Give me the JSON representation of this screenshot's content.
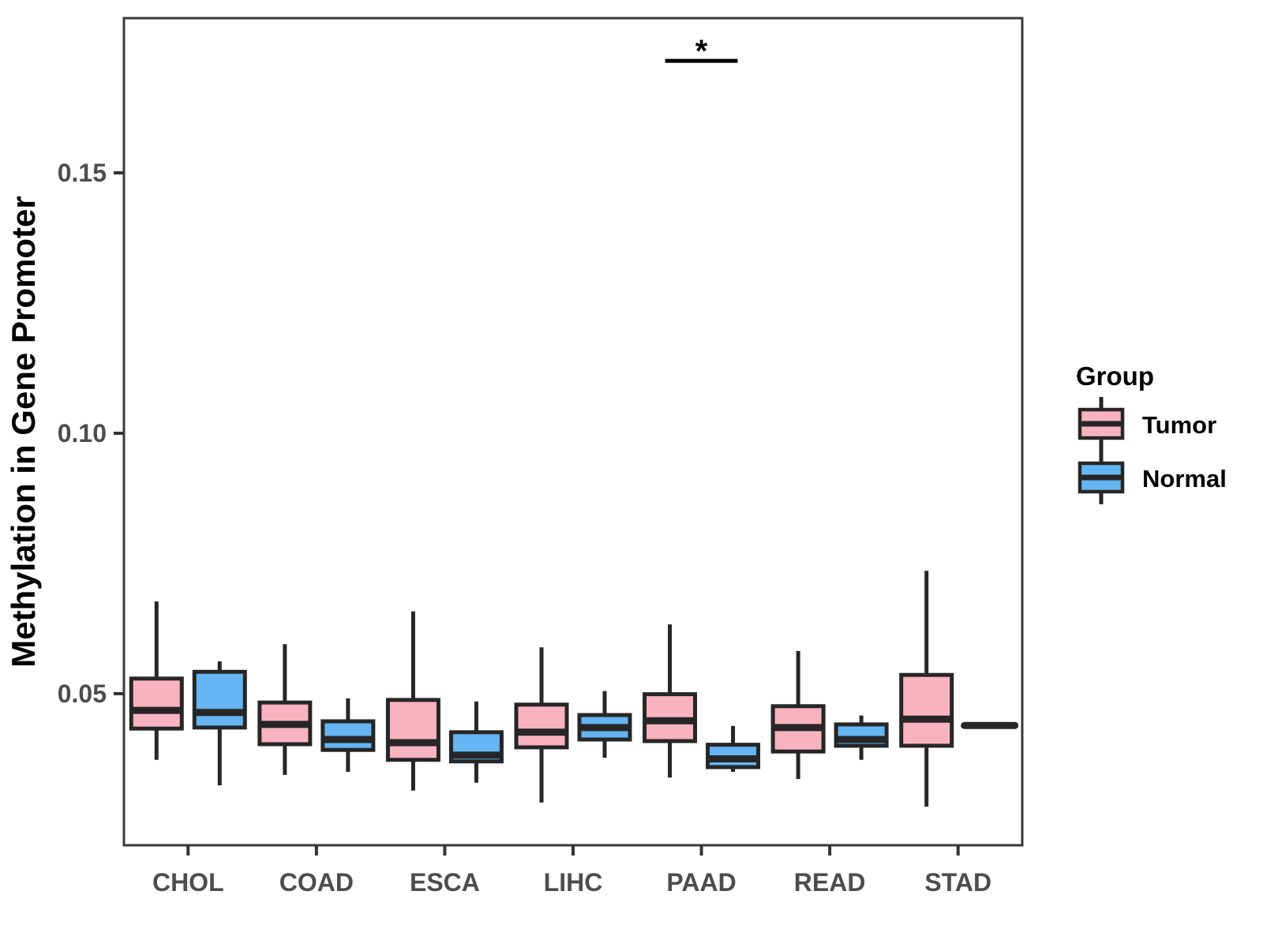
{
  "chart_data": {
    "type": "boxplot",
    "title": "",
    "xlabel": "",
    "ylabel": "Methylation in Gene Promoter",
    "categories": [
      "CHOL",
      "COAD",
      "ESCA",
      "LIHC",
      "PAAD",
      "READ",
      "STAD"
    ],
    "ylim": [
      0.0209,
      0.1797
    ],
    "y_ticks": [
      {
        "value": 0.05,
        "label": "0.05"
      },
      {
        "value": 0.1,
        "label": "0.10"
      },
      {
        "value": 0.15,
        "label": "0.15"
      }
    ],
    "grid": "off",
    "legend": {
      "title": "Group",
      "position": "right"
    },
    "series": [
      {
        "name": "Tumor",
        "color": "#F9B3C0",
        "boxes": [
          {
            "category": "CHOL",
            "whisker_low": 0.0373,
            "q1": 0.0433,
            "median": 0.0468,
            "q3": 0.0529,
            "whisker_high": 0.0677
          },
          {
            "category": "COAD",
            "whisker_low": 0.0344,
            "q1": 0.0403,
            "median": 0.0441,
            "q3": 0.0483,
            "whisker_high": 0.0595
          },
          {
            "category": "ESCA",
            "whisker_low": 0.0314,
            "q1": 0.0373,
            "median": 0.0406,
            "q3": 0.0488,
            "whisker_high": 0.0658
          },
          {
            "category": "LIHC",
            "whisker_low": 0.0291,
            "q1": 0.0397,
            "median": 0.0426,
            "q3": 0.0479,
            "whisker_high": 0.0589
          },
          {
            "category": "PAAD",
            "whisker_low": 0.0339,
            "q1": 0.0409,
            "median": 0.0448,
            "q3": 0.0499,
            "whisker_high": 0.0633
          },
          {
            "category": "READ",
            "whisker_low": 0.0336,
            "q1": 0.0389,
            "median": 0.0435,
            "q3": 0.0476,
            "whisker_high": 0.0582
          },
          {
            "category": "STAD",
            "whisker_low": 0.0283,
            "q1": 0.04,
            "median": 0.0451,
            "q3": 0.0536,
            "whisker_high": 0.0736
          }
        ]
      },
      {
        "name": "Normal",
        "color": "#64B5F1",
        "boxes": [
          {
            "category": "CHOL",
            "whisker_low": 0.0324,
            "q1": 0.0435,
            "median": 0.0464,
            "q3": 0.0542,
            "whisker_high": 0.0562
          },
          {
            "category": "COAD",
            "whisker_low": 0.035,
            "q1": 0.0392,
            "median": 0.0412,
            "q3": 0.0447,
            "whisker_high": 0.0491
          },
          {
            "category": "ESCA",
            "whisker_low": 0.0329,
            "q1": 0.037,
            "median": 0.0382,
            "q3": 0.0426,
            "whisker_high": 0.0485
          },
          {
            "category": "LIHC",
            "whisker_low": 0.0377,
            "q1": 0.0412,
            "median": 0.0435,
            "q3": 0.0459,
            "whisker_high": 0.0505
          },
          {
            "category": "PAAD",
            "whisker_low": 0.035,
            "q1": 0.0359,
            "median": 0.0375,
            "q3": 0.0402,
            "whisker_high": 0.0438
          },
          {
            "category": "READ",
            "whisker_low": 0.0373,
            "q1": 0.04,
            "median": 0.0412,
            "q3": 0.0441,
            "whisker_high": 0.0458
          },
          {
            "category": "STAD",
            "whisker_low": 0.0439,
            "q1": 0.0439,
            "median": 0.0439,
            "q3": 0.0439,
            "whisker_high": 0.0439
          }
        ]
      }
    ],
    "annotations": [
      {
        "type": "significance",
        "category": "PAAD",
        "label": "*",
        "bar_y": 0.1715
      }
    ],
    "styles": {
      "box_border": "#262626",
      "panel_border": "#3A3A3A",
      "tick_color": "#333333",
      "tick_label_color": "#4D4D4D",
      "text_color": "#000000",
      "background": "#FFFFFF"
    }
  }
}
